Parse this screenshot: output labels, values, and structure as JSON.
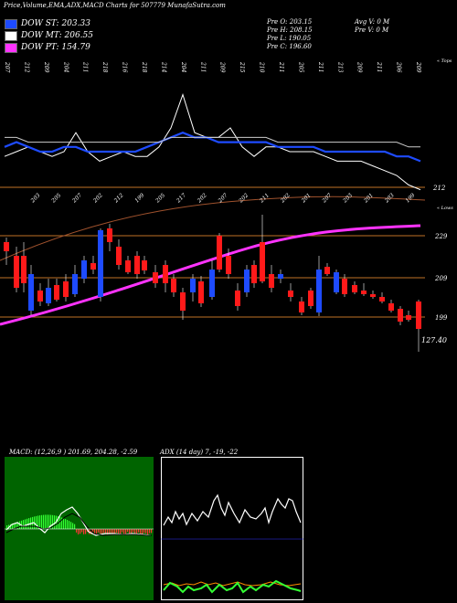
{
  "header": {
    "title": "Price,Volume,EMA,ADX,MACD Charts for 507779 MunafaSutra.com"
  },
  "legend": [
    {
      "label": "DOW ST: 203.33",
      "color": "#1e4bff"
    },
    {
      "label": "DOW MT: 206.55",
      "color": "#ffffff"
    },
    {
      "label": "DOW PT: 154.79",
      "color": "#ff33ff"
    }
  ],
  "ohlc": {
    "open": "Pre   O: 203.15",
    "high": "Pre   H: 208.15",
    "low": "Pre   L: 190.05",
    "close": "Pre   C: 196.60",
    "avg_vol": "Avg V: 0   M",
    "pre_vol": "Pre   V: 0   M"
  },
  "chart_data": [
    {
      "type": "line",
      "name": "price-ema-panel",
      "top_axis_title": "« Tops",
      "top_labels": [
        "207",
        "212",
        "209",
        "204",
        "211",
        "218",
        "216",
        "218",
        "214",
        "204",
        "211",
        "209",
        "215",
        "210",
        "211",
        "205",
        "211",
        "213",
        "209",
        "211",
        "206",
        "209"
      ],
      "bottom_axis_title": "« Lows",
      "bottom_labels": [
        "203",
        "205",
        "207",
        "202",
        "212",
        "199",
        "205",
        "217",
        "202",
        "207",
        "202",
        "211",
        "202",
        "201",
        "207",
        "203",
        "201",
        "203",
        "199"
      ],
      "price_level_labels": [
        "212",
        "229",
        "209",
        "199"
      ],
      "last_value_label": "127.40",
      "series": [
        {
          "color": "#ffffff",
          "values": [
            204,
            205,
            206,
            205,
            204,
            205,
            209,
            205,
            203,
            204,
            205,
            204,
            204,
            206,
            210,
            217,
            209,
            208,
            208,
            210,
            206,
            204,
            206,
            206,
            205,
            205,
            205,
            204,
            203,
            203,
            203,
            202,
            201,
            200,
            198,
            197
          ]
        },
        {
          "color": "#1e4bff",
          "values": [
            206,
            207,
            206,
            205,
            205,
            206,
            206,
            205,
            205,
            205,
            205,
            205,
            206,
            207,
            208,
            209,
            208,
            208,
            207,
            207,
            207,
            207,
            207,
            206,
            206,
            206,
            206,
            205,
            205,
            205,
            205,
            205,
            205,
            204,
            204,
            203
          ]
        },
        {
          "color": "#cccccc",
          "values": [
            208,
            208,
            207,
            207,
            207,
            207,
            207,
            207,
            207,
            207,
            207,
            207,
            207,
            207,
            208,
            208,
            208,
            208,
            208,
            208,
            208,
            208,
            208,
            207,
            207,
            207,
            207,
            207,
            207,
            207,
            207,
            207,
            207,
            207,
            206,
            206
          ]
        }
      ]
    },
    {
      "type": "bar",
      "name": "macd-panel",
      "title": "MACD: (12,26,9 ) 201.69,  204.28,  -2.59"
    },
    {
      "type": "line",
      "name": "adx-panel",
      "title": "ADX       (14  day) 7,  -19,  -22"
    }
  ]
}
